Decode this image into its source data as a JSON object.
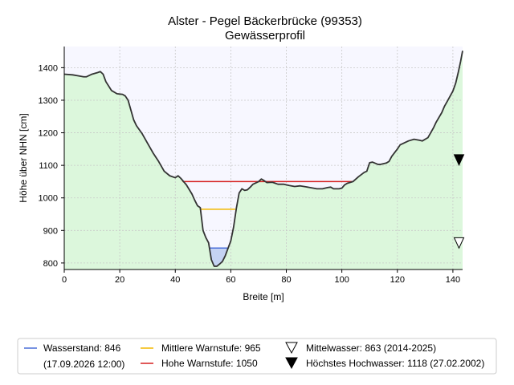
{
  "chart_data": {
    "type": "area",
    "title": "Alster - Pegel Bäckerbrücke (99353)",
    "subtitle": "Gewässerprofil",
    "xlabel": "Breite [m]",
    "ylabel": "Höhe über NHN [cm]",
    "xlim": [
      0,
      143.5
    ],
    "ylim": [
      780,
      1465
    ],
    "x_ticks": [
      "0",
      "20",
      "40",
      "60",
      "80",
      "100",
      "120",
      "140"
    ],
    "y_ticks": [
      "800",
      "900",
      "1000",
      "1100",
      "1200",
      "1300",
      "1400"
    ],
    "grid": true,
    "colors": {
      "profile": "#333333",
      "ground": "#dcf7dc",
      "sky": "#f7f7ff",
      "water_fill": "#c5d3f3",
      "water_line": "#4a6fd8",
      "mid_warn": "#f2b800",
      "high_warn": "#d62020"
    },
    "profile": [
      [
        0,
        1380
      ],
      [
        3,
        1378
      ],
      [
        5,
        1375
      ],
      [
        7,
        1372
      ],
      [
        8,
        1372
      ],
      [
        10,
        1380
      ],
      [
        12,
        1385
      ],
      [
        13,
        1388
      ],
      [
        14,
        1380
      ],
      [
        15,
        1357
      ],
      [
        17,
        1330
      ],
      [
        19,
        1320
      ],
      [
        21,
        1318
      ],
      [
        22,
        1313
      ],
      [
        23,
        1300
      ],
      [
        24,
        1270
      ],
      [
        25,
        1240
      ],
      [
        26,
        1222
      ],
      [
        28,
        1198
      ],
      [
        30,
        1168
      ],
      [
        32,
        1138
      ],
      [
        34,
        1112
      ],
      [
        36,
        1082
      ],
      [
        38,
        1068
      ],
      [
        40,
        1062
      ],
      [
        41,
        1068
      ],
      [
        42,
        1060
      ],
      [
        44,
        1040
      ],
      [
        46,
        1012
      ],
      [
        47,
        993
      ],
      [
        48,
        976
      ],
      [
        49,
        970
      ],
      [
        50,
        900
      ],
      [
        51,
        878
      ],
      [
        52,
        862
      ],
      [
        53,
        810
      ],
      [
        54,
        790
      ],
      [
        55,
        790
      ],
      [
        56,
        797
      ],
      [
        57,
        805
      ],
      [
        58,
        822
      ],
      [
        59,
        845
      ],
      [
        60,
        868
      ],
      [
        61,
        910
      ],
      [
        62,
        968
      ],
      [
        63,
        1015
      ],
      [
        64,
        1028
      ],
      [
        65,
        1023
      ],
      [
        66,
        1025
      ],
      [
        67,
        1033
      ],
      [
        68,
        1042
      ],
      [
        70,
        1050
      ],
      [
        71,
        1058
      ],
      [
        72,
        1053
      ],
      [
        73,
        1047
      ],
      [
        75,
        1048
      ],
      [
        77,
        1042
      ],
      [
        79,
        1042
      ],
      [
        81,
        1038
      ],
      [
        83,
        1035
      ],
      [
        85,
        1037
      ],
      [
        87,
        1034
      ],
      [
        89,
        1031
      ],
      [
        91,
        1028
      ],
      [
        93,
        1028
      ],
      [
        95,
        1032
      ],
      [
        96,
        1033
      ],
      [
        97,
        1028
      ],
      [
        99,
        1028
      ],
      [
        100,
        1030
      ],
      [
        101,
        1040
      ],
      [
        102,
        1045
      ],
      [
        104,
        1050
      ],
      [
        106,
        1065
      ],
      [
        108,
        1078
      ],
      [
        109,
        1082
      ],
      [
        110,
        1108
      ],
      [
        111,
        1110
      ],
      [
        113,
        1103
      ],
      [
        114,
        1103
      ],
      [
        116,
        1107
      ],
      [
        117,
        1112
      ],
      [
        118,
        1128
      ],
      [
        120,
        1150
      ],
      [
        121,
        1163
      ],
      [
        122,
        1167
      ],
      [
        124,
        1175
      ],
      [
        126,
        1180
      ],
      [
        128,
        1177
      ],
      [
        129,
        1175
      ],
      [
        131,
        1185
      ],
      [
        133,
        1215
      ],
      [
        134,
        1233
      ],
      [
        136,
        1262
      ],
      [
        137,
        1282
      ],
      [
        138,
        1297
      ],
      [
        140,
        1328
      ],
      [
        141,
        1352
      ],
      [
        142,
        1388
      ],
      [
        142.8,
        1420
      ],
      [
        143.5,
        1452
      ]
    ],
    "water": {
      "level": 846,
      "x": [
        52.3,
        58.8
      ]
    },
    "mid_warn": {
      "level": 965,
      "x": [
        48.8,
        61.6
      ]
    },
    "high_warn": {
      "level": 1050,
      "x": [
        42.6,
        103.7
      ]
    },
    "markers": [
      {
        "name": "Mittelwasser",
        "level": 863,
        "x": 142.2,
        "filled": false
      },
      {
        "name": "Höchstes Hochwasser",
        "level": 1118,
        "x": 142.2,
        "filled": true
      }
    ],
    "legend": {
      "placement": "bottom",
      "wasserstand": "Wasserstand: 846",
      "wasserstand_date": "(17.09.2026 12:00)",
      "mittlere_warnstufe": "Mittlere Warnstufe: 965",
      "hohe_warnstufe": "Hohe Warnstufe: 1050",
      "mittelwasser": "Mittelwasser: 863 (2014-2025)",
      "hochwasser": "Höchstes Hochwasser: 1118 (27.02.2002)"
    }
  }
}
